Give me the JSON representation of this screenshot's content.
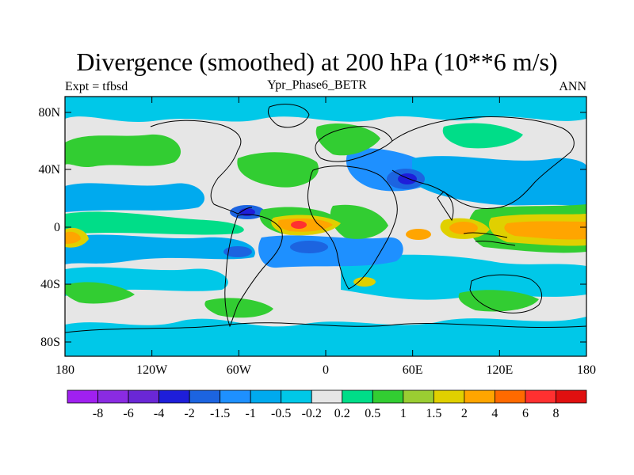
{
  "title": "Divergence (smoothed) at 200 hPa (10**6 m/s)",
  "subtitle_left": "Expt = tfbsd",
  "subtitle_center": "Ypr_Phase6_BETR",
  "subtitle_right": "ANN",
  "y_ticks": [
    "80N",
    "40N",
    "0",
    "40S",
    "80S"
  ],
  "x_ticks": [
    "180",
    "120W",
    "60W",
    "0",
    "60E",
    "120E",
    "180"
  ],
  "colorbar": {
    "labels": [
      "-8",
      "-6",
      "-4",
      "-2",
      "-1.5",
      "-1",
      "-0.5",
      "-0.2",
      "0.2",
      "0.5",
      "1",
      "1.5",
      "2",
      "4",
      "6",
      "8"
    ],
    "colors": [
      "#a020f0",
      "#8a2be2",
      "#6a27d6",
      "#1e1eda",
      "#1c64e0",
      "#1e90ff",
      "#00aaee",
      "#00c8e8",
      "#e6e6e6",
      "#00dd88",
      "#32cd32",
      "#9acd32",
      "#e0d000",
      "#ffa500",
      "#ff6a00",
      "#ff3030",
      "#e01010"
    ]
  },
  "palette": {
    "neutral": "#e6e6e6",
    "cyan": "#00c8e8",
    "lightblue": "#00aaee",
    "blue": "#1e90ff",
    "darkblue": "#1c64e0",
    "navy": "#1e1eda",
    "teal": "#00dd88",
    "green": "#32cd32",
    "yellowgreen": "#9acd32",
    "yellow": "#e0d000",
    "orange": "#ffa500",
    "red": "#ff3030"
  }
}
